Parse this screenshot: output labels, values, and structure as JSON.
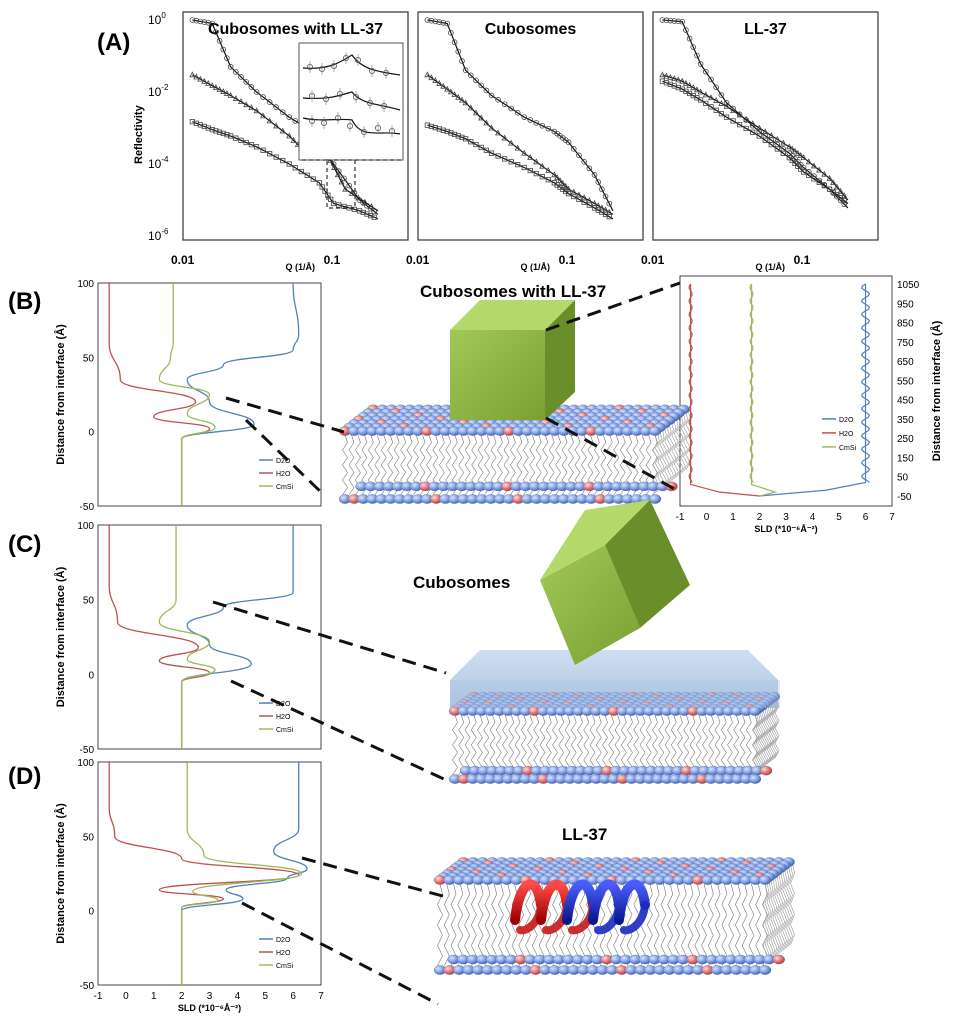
{
  "panel_labels": {
    "A": "(A)",
    "B": "(B)",
    "C": "(C)",
    "D": "(D)"
  },
  "panel_a": {
    "ylabel": "Reflectivity",
    "xlabel": "Q (1/Å)",
    "y_ticks": [
      {
        "base": "10",
        "exp": "0",
        "value": 1
      },
      {
        "base": "10",
        "exp": "-2",
        "value": 0.01
      },
      {
        "base": "10",
        "exp": "-4",
        "value": 0.0001
      },
      {
        "base": "10",
        "exp": "-6",
        "value": 1e-06
      }
    ],
    "x_ticks": [
      "0.01",
      "0.1"
    ],
    "subplot_titles": [
      "Cubosomes with LL-37",
      "Cubosomes",
      "LL-37"
    ]
  },
  "sld_axes": {
    "ylabel": "Distance from interface (Å)",
    "xlabel": "SLD (*10⁻⁶Å⁻²)",
    "y_ticks": [
      "100",
      "50",
      "0",
      "-50"
    ],
    "x_ticks": [
      "-1",
      "0",
      "1",
      "2",
      "3",
      "4",
      "5",
      "6",
      "7"
    ],
    "legend": [
      "D2O",
      "H2O",
      "CmSi"
    ]
  },
  "inset_b": {
    "y_ticks": [
      "1050",
      "950",
      "850",
      "750",
      "650",
      "550",
      "450",
      "350",
      "250",
      "150",
      "50",
      "-50"
    ],
    "ylabel": "Distance from interface (Å)",
    "x_ticks": [
      "-1",
      "0",
      "1",
      "2",
      "3",
      "4",
      "5",
      "6",
      "7"
    ],
    "xlabel": "SLD (*10⁻⁶Å⁻²)",
    "legend": [
      "D2O",
      "H2O",
      "CmSi"
    ]
  },
  "illustration_labels": {
    "b": "Cubosomes with LL-37",
    "c": "Cubosomes",
    "d": "LL-37"
  },
  "colors": {
    "D2O": "#4f81bd",
    "H2O": "#c0504d",
    "CmSi": "#9bbb59",
    "cube_front": "#8cb33f",
    "cube_top": "#b4d86a",
    "cube_side": "#6a8f2a",
    "head_blue": "#7f9fe6",
    "head_red": "#e37373",
    "water_layer": "#a9c3e0"
  },
  "chart_data": [
    {
      "type": "scatter",
      "title": "Cubosomes with LL-37",
      "xlabel": "Q (1/Å)",
      "ylabel": "Reflectivity",
      "x_scale": "log",
      "y_scale": "log",
      "xlim": [
        0.01,
        0.3
      ],
      "ylim": [
        1e-06,
        2
      ],
      "series": [
        {
          "x": [
            0.011,
            0.015,
            0.02,
            0.03,
            0.05,
            0.08,
            0.1,
            0.15,
            0.2
          ],
          "y": [
            1,
            0.8,
            0.05,
            0.01,
            0.002,
            0.0006,
            0.0001,
            1e-05,
            4e-06
          ]
        },
        {
          "x": [
            0.011,
            0.015,
            0.02,
            0.03,
            0.05,
            0.07,
            0.09,
            0.12,
            0.2
          ],
          "y": [
            0.03,
            0.015,
            0.008,
            0.003,
            0.0006,
            0.00015,
            0.0002,
            2e-05,
            5e-06
          ]
        },
        {
          "x": [
            0.011,
            0.015,
            0.02,
            0.03,
            0.05,
            0.08,
            0.1,
            0.15,
            0.2
          ],
          "y": [
            0.0015,
            0.0009,
            0.0006,
            0.0003,
            0.0001,
            3e-05,
            8e-06,
            5e-06,
            3e-06
          ]
        }
      ]
    },
    {
      "type": "scatter",
      "title": "Cubosomes",
      "xlabel": "Q (1/Å)",
      "x_scale": "log",
      "y_scale": "log",
      "xlim": [
        0.01,
        0.3
      ],
      "ylim": [
        1e-06,
        2
      ],
      "series": [
        {
          "x": [
            0.011,
            0.015,
            0.02,
            0.03,
            0.05,
            0.08,
            0.1,
            0.15,
            0.2
          ],
          "y": [
            1,
            0.8,
            0.04,
            0.008,
            0.002,
            0.0008,
            0.0004,
            5e-05,
            5e-06
          ]
        },
        {
          "x": [
            0.011,
            0.015,
            0.02,
            0.03,
            0.05,
            0.08,
            0.1,
            0.15,
            0.2
          ],
          "y": [
            0.03,
            0.012,
            0.005,
            0.001,
            0.0002,
            5e-05,
            2e-05,
            8e-06,
            4e-06
          ]
        },
        {
          "x": [
            0.011,
            0.015,
            0.02,
            0.03,
            0.05,
            0.08,
            0.1,
            0.15,
            0.2
          ],
          "y": [
            0.0012,
            0.0008,
            0.0005,
            0.0002,
            8e-05,
            3e-05,
            1.5e-05,
            6e-06,
            3e-06
          ]
        }
      ]
    },
    {
      "type": "scatter",
      "title": "LL-37",
      "xlabel": "Q (1/Å)",
      "x_scale": "log",
      "y_scale": "log",
      "xlim": [
        0.01,
        0.3
      ],
      "ylim": [
        1e-06,
        2
      ],
      "series": [
        {
          "x": [
            0.011,
            0.015,
            0.02,
            0.03,
            0.05,
            0.08,
            0.1,
            0.15,
            0.2
          ],
          "y": [
            1,
            0.9,
            0.06,
            0.005,
            0.0008,
            0.0002,
            8e-05,
            2e-05,
            6e-06
          ]
        },
        {
          "x": [
            0.011,
            0.015,
            0.02,
            0.03,
            0.05,
            0.08,
            0.1,
            0.15,
            0.2
          ],
          "y": [
            0.03,
            0.02,
            0.01,
            0.004,
            0.001,
            0.0003,
            0.00015,
            4e-05,
            1e-05
          ]
        },
        {
          "x": [
            0.011,
            0.015,
            0.02,
            0.03,
            0.05,
            0.08,
            0.1,
            0.15,
            0.2
          ],
          "y": [
            0.02,
            0.012,
            0.006,
            0.002,
            0.0006,
            0.00015,
            6e-05,
            2e-05,
            8e-06
          ]
        }
      ]
    },
    {
      "type": "line",
      "xlabel": "SLD (*10⁻⁶Å⁻²)",
      "ylabel": "Distance from interface (Å)",
      "xlim": [
        -1,
        7
      ],
      "ylim": [
        -50,
        100
      ],
      "series": [
        {
          "name": "D2O",
          "points": [
            [
              2,
              -50
            ],
            [
              2,
              -5
            ],
            [
              4.6,
              5
            ],
            [
              3,
              20
            ],
            [
              2.2,
              35
            ],
            [
              3.5,
              45
            ],
            [
              6,
              55
            ],
            [
              6.2,
              65
            ],
            [
              6,
              100
            ]
          ]
        },
        {
          "name": "H2O",
          "points": [
            [
              2,
              -50
            ],
            [
              2,
              -5
            ],
            [
              3,
              2
            ],
            [
              1,
              10
            ],
            [
              2.5,
              20
            ],
            [
              -0.2,
              35
            ],
            [
              -0.6,
              60
            ],
            [
              -0.6,
              100
            ]
          ]
        },
        {
          "name": "CmSi",
          "points": [
            [
              2,
              -50
            ],
            [
              2,
              -5
            ],
            [
              3.2,
              3
            ],
            [
              2.2,
              12
            ],
            [
              3,
              25
            ],
            [
              1.2,
              35
            ],
            [
              1.6,
              50
            ],
            [
              1.7,
              60
            ],
            [
              1.7,
              100
            ]
          ]
        }
      ]
    },
    {
      "type": "line",
      "xlabel": "SLD (*10⁻⁶Å⁻²)",
      "ylabel": "Distance from interface (Å)",
      "xlim": [
        -1,
        7
      ],
      "ylim": [
        -50,
        100
      ],
      "series": [
        {
          "name": "D2O",
          "points": [
            [
              2,
              -50
            ],
            [
              2,
              -5
            ],
            [
              4.5,
              7
            ],
            [
              3,
              20
            ],
            [
              2.2,
              33
            ],
            [
              3.5,
              45
            ],
            [
              6,
              55
            ],
            [
              6,
              100
            ]
          ]
        },
        {
          "name": "H2O",
          "points": [
            [
              2,
              -50
            ],
            [
              2,
              -5
            ],
            [
              3,
              1
            ],
            [
              1.2,
              9
            ],
            [
              2.6,
              18
            ],
            [
              -0.3,
              35
            ],
            [
              -0.6,
              60
            ],
            [
              -0.6,
              100
            ]
          ]
        },
        {
          "name": "CmSi",
          "points": [
            [
              2,
              -50
            ],
            [
              2,
              -5
            ],
            [
              3.2,
              3
            ],
            [
              2.2,
              10
            ],
            [
              3,
              22
            ],
            [
              1.2,
              35
            ],
            [
              1.8,
              50
            ],
            [
              1.8,
              100
            ]
          ]
        }
      ]
    },
    {
      "type": "line",
      "xlabel": "SLD (*10⁻⁶Å⁻²)",
      "ylabel": "Distance from interface (Å)",
      "xlim": [
        -1,
        7
      ],
      "ylim": [
        -50,
        100
      ],
      "series": [
        {
          "name": "D2O",
          "points": [
            [
              2,
              -50
            ],
            [
              2,
              0
            ],
            [
              4.2,
              8
            ],
            [
              3.6,
              14
            ],
            [
              5.8,
              22
            ],
            [
              6.5,
              28
            ],
            [
              5.3,
              40
            ],
            [
              6.2,
              55
            ],
            [
              6.2,
              100
            ]
          ]
        },
        {
          "name": "H2O",
          "points": [
            [
              2,
              -50
            ],
            [
              2,
              2
            ],
            [
              3.5,
              8
            ],
            [
              1.2,
              14
            ],
            [
              6.2,
              24
            ],
            [
              2,
              35
            ],
            [
              -0.4,
              50
            ],
            [
              -0.6,
              70
            ],
            [
              -0.6,
              100
            ]
          ]
        },
        {
          "name": "CmSi",
          "points": [
            [
              2,
              -50
            ],
            [
              2,
              2
            ],
            [
              3.3,
              7
            ],
            [
              2.4,
              13
            ],
            [
              6.3,
              25
            ],
            [
              2.8,
              37
            ],
            [
              2.2,
              55
            ],
            [
              2.2,
              100
            ]
          ]
        }
      ]
    },
    {
      "type": "line",
      "xlabel": "SLD (*10⁻⁶Å⁻²)",
      "ylabel": "Distance from interface (Å)",
      "xlim": [
        -1,
        7
      ],
      "ylim": [
        -50,
        1050
      ],
      "series": [
        {
          "name": "D2O",
          "points": [
            [
              2,
              -50
            ],
            [
              4.5,
              -20
            ],
            [
              6,
              20
            ],
            [
              6,
              1050
            ]
          ]
        },
        {
          "name": "H2O",
          "points": [
            [
              2,
              -50
            ],
            [
              0.5,
              -30
            ],
            [
              -0.6,
              10
            ],
            [
              -0.6,
              1050
            ]
          ]
        },
        {
          "name": "CmSi",
          "points": [
            [
              2,
              -50
            ],
            [
              2.6,
              -30
            ],
            [
              1.7,
              10
            ],
            [
              1.7,
              1050
            ]
          ]
        }
      ]
    }
  ]
}
